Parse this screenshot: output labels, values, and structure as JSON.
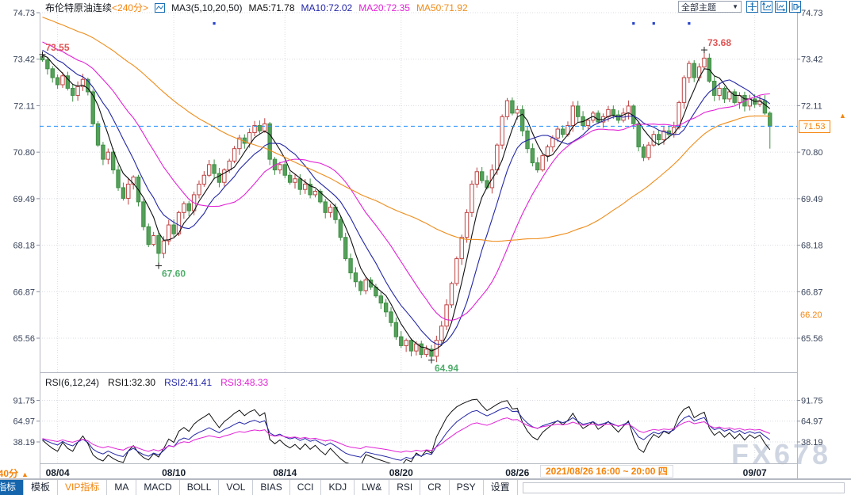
{
  "header": {
    "instrument": "布伦特原油连续",
    "timeframe_tag": "<240分>",
    "ma_group": "MA3(5,10,20,50)",
    "ma5": "MA5:71.78",
    "ma10": "MA10:72.02",
    "ma20": "MA20:72.35",
    "ma50": "MA50:71.92",
    "theme_select_label": "全部主题",
    "theme_select_arrow": "▼"
  },
  "rsi_header": {
    "group": "RSI(6,12,24)",
    "rsi1": "RSI1:32.30",
    "rsi2": "RSI2:41.41",
    "rsi3": "RSI3:48.33"
  },
  "price_badge": {
    "value": "71.53",
    "arrow": "▲"
  },
  "ref_label": "66.20",
  "timeframe_cell": {
    "label": "240分",
    "arrow": "▲"
  },
  "tooltip": "2021/08/26 16:00 ~ 20:00 四",
  "watermark": "FX678",
  "toolbar": {
    "tabs": [
      {
        "label": "指标",
        "selected": true
      },
      {
        "label": "模板"
      },
      {
        "label": "VIP指标",
        "accent": true
      },
      {
        "label": "MA"
      },
      {
        "label": "MACD"
      },
      {
        "label": "BOLL"
      },
      {
        "label": "VOL"
      },
      {
        "label": "BIAS"
      },
      {
        "label": "CCI"
      },
      {
        "label": "KDJ"
      },
      {
        "label": "LW&"
      },
      {
        "label": "RSI"
      },
      {
        "label": "CR"
      },
      {
        "label": "PSY"
      },
      {
        "label": "设置"
      }
    ]
  },
  "chart_data": {
    "type": "candlestick",
    "title": "布伦特原油连续 240分K线, 主图MA(5,10,20,50), 副图RSI(6,12,24)",
    "up_color": "#bf4242",
    "up_fill": "#ffffff",
    "down_color": "#3f8f45",
    "down_fill": "#55a05a",
    "grid_color": "#d9dce3",
    "border_color": "#b4b9c2",
    "axis_text_color": "#39445a",
    "date_text_color": "#17202e",
    "current_price_line_color": "#1e90ff",
    "event_marker_color": "#2742c8",
    "price_pane": {
      "y_ticks": [
        74.73,
        73.42,
        72.11,
        70.8,
        69.49,
        68.18,
        66.87,
        65.56
      ],
      "x_ticks": [
        {
          "label": "08/04",
          "bar": 3
        },
        {
          "label": "08/10",
          "bar": 26
        },
        {
          "label": "08/14",
          "bar": 48
        },
        {
          "label": "08/20",
          "bar": 71
        },
        {
          "label": "08/26",
          "bar": 94
        },
        {
          "label": "09/07",
          "bar": 141
        }
      ],
      "first_open": 73.5,
      "closes": [
        73.4,
        73.15,
        72.9,
        72.7,
        72.95,
        72.6,
        72.4,
        72.65,
        72.85,
        72.5,
        71.6,
        71.0,
        70.6,
        70.8,
        70.3,
        69.8,
        69.5,
        69.9,
        70.1,
        69.4,
        68.7,
        68.2,
        68.45,
        67.95,
        68.3,
        68.75,
        68.5,
        69.1,
        69.35,
        69.15,
        69.6,
        69.9,
        70.15,
        70.45,
        70.2,
        69.95,
        70.3,
        70.55,
        70.9,
        71.2,
        71.05,
        71.35,
        71.55,
        71.4,
        71.6,
        70.6,
        70.3,
        70.45,
        70.15,
        69.95,
        70.05,
        69.75,
        69.9,
        69.6,
        69.7,
        69.4,
        69.1,
        69.25,
        68.9,
        68.4,
        67.8,
        67.4,
        67.15,
        66.9,
        67.2,
        67.0,
        66.75,
        66.55,
        66.3,
        66.0,
        65.6,
        65.35,
        65.5,
        65.2,
        65.4,
        65.1,
        65.25,
        65.05,
        65.5,
        65.9,
        66.5,
        67.1,
        67.8,
        68.4,
        69.1,
        69.9,
        70.25,
        70.0,
        69.8,
        70.3,
        71.0,
        71.8,
        72.25,
        71.9,
        72.0,
        71.4,
        70.9,
        70.5,
        70.3,
        70.7,
        70.95,
        71.2,
        71.45,
        71.3,
        71.55,
        72.1,
        71.8,
        71.55,
        71.7,
        71.9,
        71.65,
        71.8,
        72.0,
        71.85,
        71.7,
        71.9,
        72.1,
        71.6,
        70.95,
        70.65,
        71.0,
        71.3,
        71.15,
        71.4,
        71.3,
        71.5,
        72.2,
        72.9,
        73.3,
        72.9,
        73.2,
        73.45,
        72.8,
        72.4,
        72.6,
        72.3,
        72.5,
        72.2,
        72.4,
        72.1,
        72.3,
        72.15,
        72.25,
        71.9,
        71.53
      ],
      "extreme_overrides": [
        {
          "bar": 0,
          "high": 73.55
        },
        {
          "bar": 23,
          "low": 67.6
        },
        {
          "bar": 77,
          "low": 64.94
        },
        {
          "bar": 131,
          "high": 73.68
        },
        {
          "bar": 144,
          "low": 70.9
        }
      ],
      "annotations": [
        {
          "bar": 0,
          "price": 73.55,
          "text": "73.55",
          "side": "above",
          "color": "#e05454"
        },
        {
          "bar": 131,
          "price": 73.68,
          "text": "73.68",
          "side": "above",
          "color": "#e05454"
        },
        {
          "bar": 23,
          "price": 67.6,
          "text": "67.60",
          "side": "below",
          "color": "#4fae6b"
        },
        {
          "bar": 77,
          "price": 64.94,
          "text": "64.94",
          "side": "below",
          "color": "#4fae6b"
        }
      ],
      "ma_periods": [
        5,
        10,
        20,
        50
      ],
      "ma_colors": [
        "#101010",
        "#2326a6",
        "#e222d6",
        "#ef8c1a"
      ],
      "current_price": 71.53,
      "ref_price": 66.2,
      "event_marker_bars": [
        34,
        117,
        121,
        128
      ],
      "prehistory": {
        "start": 75.8,
        "end": 73.5,
        "count": 50,
        "zigzag": 0.16
      }
    },
    "rsi_pane": {
      "periods": [
        6,
        12,
        24
      ],
      "colors": [
        "#101010",
        "#2326a6",
        "#e222d6"
      ],
      "y_ticks": [
        91.75,
        64.97,
        38.19
      ],
      "latest": [
        32.3,
        41.41,
        48.33
      ]
    }
  }
}
